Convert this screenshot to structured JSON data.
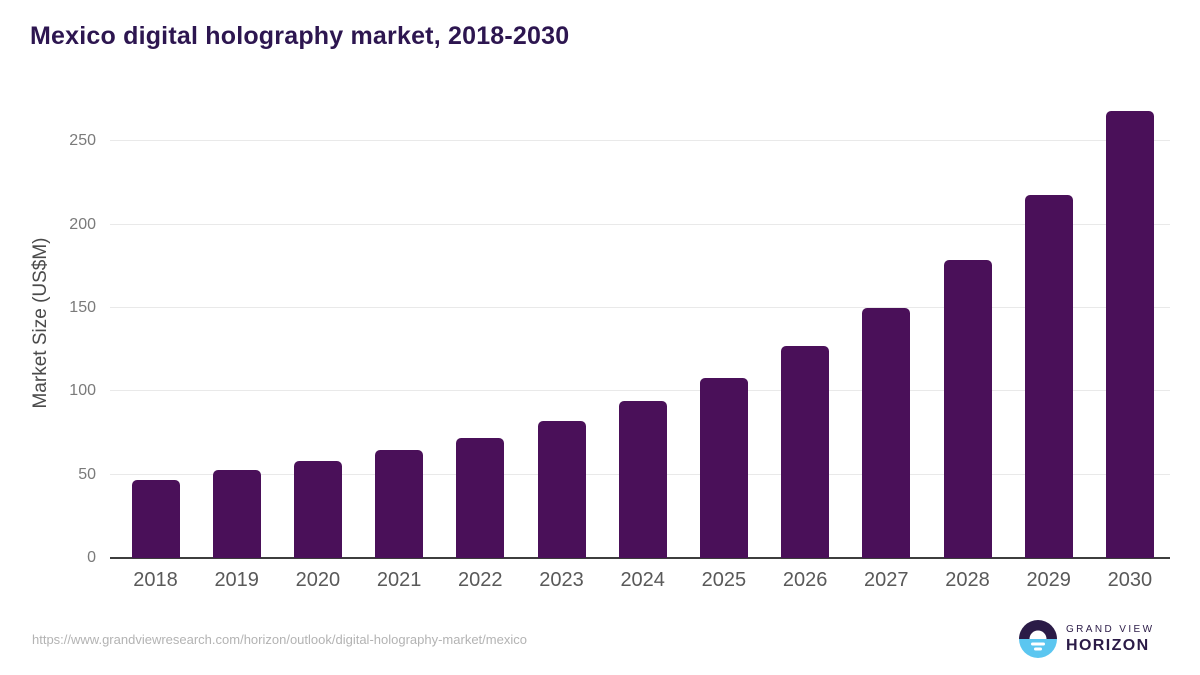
{
  "chart_data": {
    "type": "bar",
    "title": "Mexico digital holography market, 2018-2030",
    "categories": [
      "2018",
      "2019",
      "2020",
      "2021",
      "2022",
      "2023",
      "2024",
      "2025",
      "2026",
      "2027",
      "2028",
      "2029",
      "2030"
    ],
    "values": [
      47,
      53,
      58,
      65,
      72,
      82,
      94,
      108,
      127,
      150,
      179,
      218,
      268
    ],
    "xlabel": "",
    "ylabel": "Market Size (US$M)",
    "ylim": [
      0,
      270
    ],
    "yticks": [
      0,
      50,
      100,
      150,
      200,
      250
    ],
    "grid": "horizontal-only",
    "legend_position": "none",
    "bar_color": "#4a1059"
  },
  "footer": {
    "source_url": "https://www.grandviewresearch.com/horizon/outlook/digital-holography-market/mexico",
    "logo": {
      "mark": "sunrise-over-water-icon",
      "line1": "GRAND VIEW",
      "line2": "HORIZON"
    }
  },
  "colors": {
    "title": "#2d1650",
    "bar": "#4a1059",
    "gridline": "#e9e9e9",
    "axis_line": "#3d3d3d",
    "y_tick": "#7a7a7a",
    "x_tick": "#595959",
    "y_axis_label": "#4a4a4a",
    "source_url": "#b3b3b3",
    "logo_purple": "#2b1b47",
    "logo_blue": "#5bc6f0"
  }
}
